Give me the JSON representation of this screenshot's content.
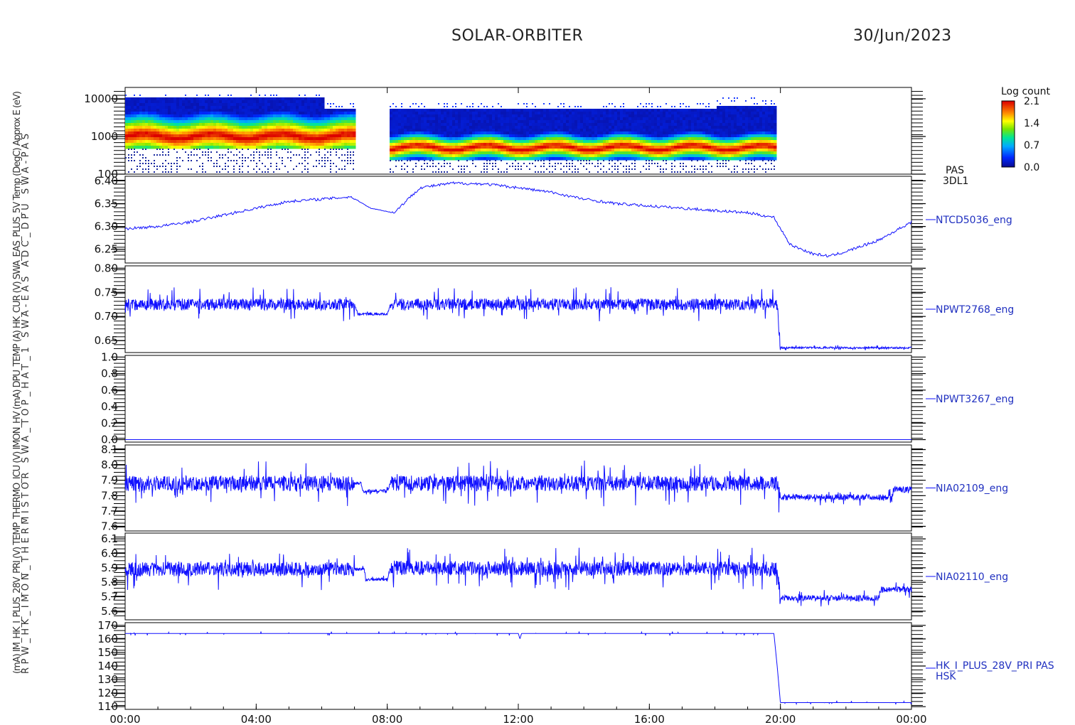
{
  "header": {
    "mission": "SOLAR-ORBITER",
    "date": "30/Jun/2023"
  },
  "colorbar": {
    "title": "Log count",
    "ticks": [
      "2.1",
      "1.4",
      "0.7",
      "0.0"
    ]
  },
  "x_axis": {
    "ticks": [
      "00:00",
      "04:00",
      "08:00",
      "12:00",
      "16:00",
      "20:00",
      "00:00"
    ]
  },
  "chart_data": [
    {
      "type": "heatmap",
      "ylabel": "E (eV)",
      "yscale": "log",
      "ylim": [
        100,
        20000
      ],
      "yticks": [
        "10000",
        "1000",
        "100"
      ],
      "right_label": [
        "PAS",
        "3DL1"
      ],
      "data_gap_hours": [
        7.0,
        8.0
      ],
      "peak_energy_eV": {
        "00:00-07:00": 1100,
        "08:00-20:00": 550
      },
      "colorbar_range": [
        0.0,
        2.1
      ]
    },
    {
      "type": "line",
      "ylabel": "Temp (DegC)",
      "right_label": "NTCD5036_eng",
      "ylim": [
        6.22,
        6.41
      ],
      "yticks": [
        "6.40",
        "6.35",
        "6.30",
        "6.25"
      ],
      "x": [
        0,
        1,
        2,
        3,
        4,
        5,
        6,
        6.9,
        7.5,
        8.2,
        9,
        10,
        11,
        12,
        13,
        14,
        15,
        16,
        17,
        18,
        19,
        19.8,
        20.3,
        21,
        21.5,
        22,
        23,
        24
      ],
      "y": [
        6.295,
        6.3,
        6.31,
        6.325,
        6.34,
        6.355,
        6.36,
        6.365,
        6.34,
        6.33,
        6.385,
        6.395,
        6.393,
        6.385,
        6.375,
        6.36,
        6.35,
        6.345,
        6.34,
        6.335,
        6.33,
        6.32,
        6.26,
        6.24,
        6.235,
        6.245,
        6.27,
        6.31
      ]
    },
    {
      "type": "line",
      "ylabel": "(A)",
      "right_label": "NPWT2768_eng",
      "ylim": [
        0.625,
        0.805
      ],
      "yticks": [
        "0.80",
        "0.75",
        "0.70",
        "0.65"
      ],
      "x": [
        0,
        7.0,
        7.1,
        8.0,
        8.1,
        19.9,
        20.0,
        24
      ],
      "y": [
        0.725,
        0.725,
        0.705,
        0.705,
        0.725,
        0.725,
        0.635,
        0.635
      ]
    },
    {
      "type": "line",
      "ylabel": "(V)",
      "right_label": "NPWT3267_eng",
      "ylim": [
        -0.03,
        1.02
      ],
      "yticks": [
        "1.0",
        "0.8",
        "0.6",
        "0.4",
        "0.2",
        "0.0"
      ],
      "x": [
        0,
        24
      ],
      "y": [
        0.0,
        0.0
      ]
    },
    {
      "type": "line",
      "ylabel": "(V)",
      "right_label": "NIA02109_eng",
      "ylim": [
        7.57,
        8.13
      ],
      "yticks": [
        "8.1",
        "8.0",
        "7.9",
        "7.8",
        "7.7",
        "7.6"
      ],
      "x": [
        0,
        7.2,
        7.25,
        8.0,
        8.1,
        19.9,
        20.0,
        23.4,
        23.45,
        24
      ],
      "y": [
        7.88,
        7.88,
        7.83,
        7.83,
        7.88,
        7.88,
        7.79,
        7.79,
        7.84,
        7.84
      ]
    },
    {
      "type": "line",
      "ylabel": "(V)",
      "right_label": "NIA02110_eng",
      "ylim": [
        5.54,
        6.14
      ],
      "yticks": [
        "6.1",
        "6.0",
        "5.9",
        "5.8",
        "5.7",
        "5.6"
      ],
      "x": [
        0,
        7.3,
        7.35,
        8.0,
        8.1,
        19.9,
        20.0,
        23.0,
        23.05,
        24
      ],
      "y": [
        5.89,
        5.89,
        5.82,
        5.82,
        5.9,
        5.89,
        5.69,
        5.69,
        5.75,
        5.75
      ]
    },
    {
      "type": "line",
      "ylabel": "(mA)",
      "right_label": [
        "HK_I_PLUS_28V_PRI PAS",
        "HSK"
      ],
      "ylim": [
        108,
        172
      ],
      "yticks": [
        "170",
        "160",
        "150",
        "140",
        "130",
        "120",
        "110"
      ],
      "x": [
        0,
        12.0,
        12.05,
        12.1,
        19.8,
        19.9,
        20.0,
        24
      ],
      "y": [
        164,
        164,
        160,
        164,
        164,
        140,
        113,
        113
      ]
    }
  ],
  "left_ylabels": [
    "(mA) IM_HK_I_PLUS_28V_PRI (V) TEMP_THERMO_ICU (V) IMON_HV (mA) DPU_TEMP (A) HK_CUR (V) SWA_EAS_PLUS_5V Temp (DegC) Approx E (eV)",
    "RPW_HK_IMON_THERMISTOR SWA_TOP_HAT_1 SWA-EAS ADC_DPU SWA-PAS"
  ]
}
